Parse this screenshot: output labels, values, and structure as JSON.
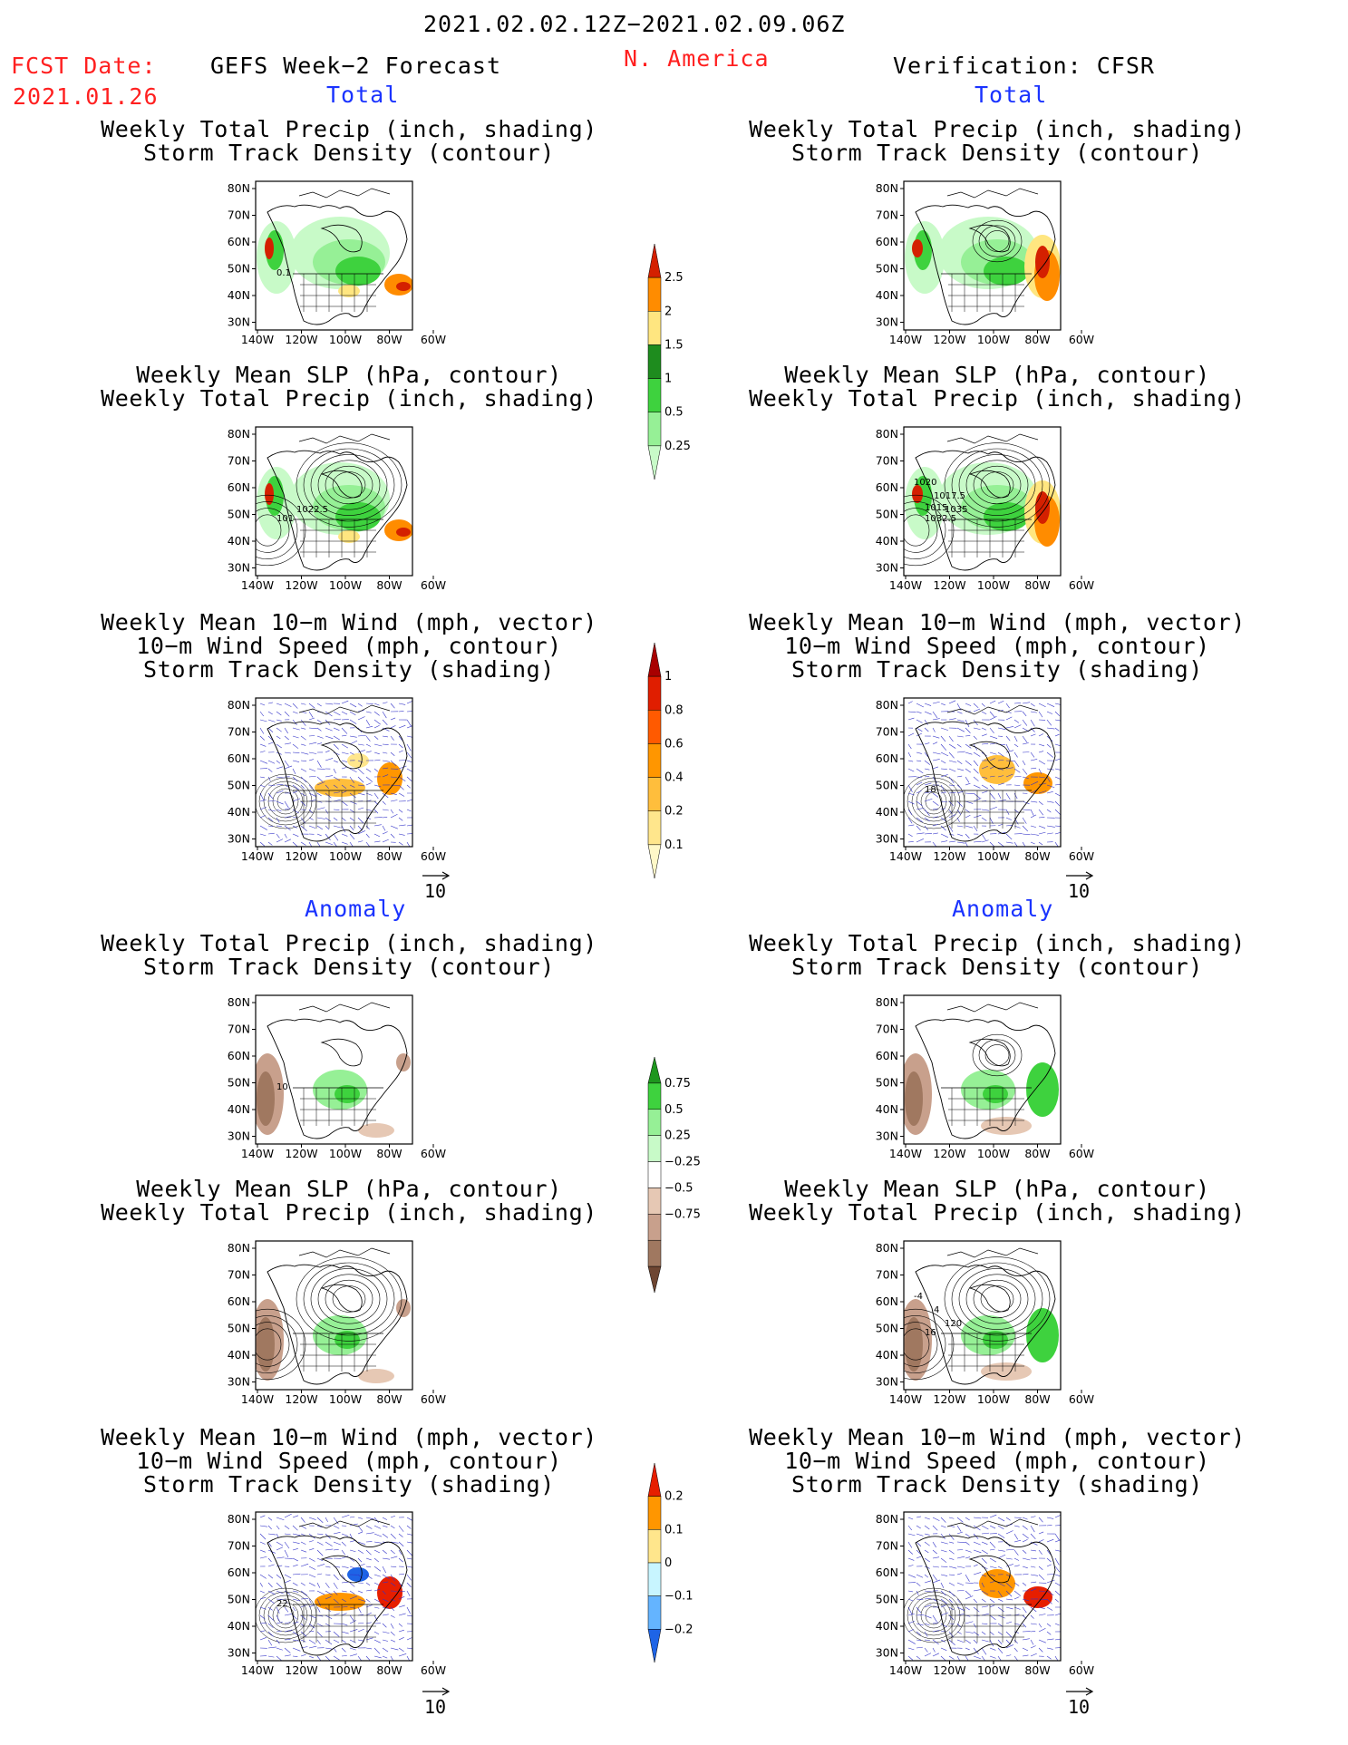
{
  "header": {
    "date_range": "2021.02.02.12Z−2021.02.09.06Z",
    "fcst_label": "FCST Date:",
    "fcst_date": "2021.01.26",
    "region": "N. America",
    "left_title": "GEFS Week−2 Forecast",
    "right_title": "Verification: CFSR"
  },
  "sections": {
    "total": "Total",
    "anomaly": "Anomaly"
  },
  "panel_titles": {
    "precip_track": [
      "Weekly Total Precip (inch, shading)",
      "Storm Track Density (contour)"
    ],
    "slp_precip": [
      "Weekly Mean SLP (hPa, contour)",
      "Weekly Total Precip (inch, shading)"
    ],
    "wind_track": [
      "Weekly Mean 10−m Wind (mph, vector)",
      "10−m Wind Speed (mph, contour)",
      "Storm Track Density (shading)"
    ]
  },
  "axes": {
    "lat_labels": [
      "80N",
      "70N",
      "60N",
      "50N",
      "40N",
      "30N"
    ],
    "lon_labels": [
      "140W",
      "120W",
      "100W",
      "80W",
      "60W"
    ]
  },
  "vector_ref": "10",
  "contour_labels": {
    "fcst_precip_track": [
      "0.1"
    ],
    "fcst_slp": [
      "101",
      "1022.5"
    ],
    "verif_slp": [
      "1032.5",
      "1035",
      "1020",
      "1017.5",
      "1015"
    ],
    "verif_wind": [
      "18"
    ],
    "fcst_anom_precip": [
      "10"
    ],
    "verif_anom_slp": [
      "16",
      "120",
      "-4",
      "4"
    ],
    "fcst_anom_wind": [
      "22"
    ]
  },
  "colorbars": {
    "precip_total": {
      "labels": [
        "2.5",
        "2",
        "1.5",
        "1",
        "0.5",
        "0.25"
      ],
      "colors": [
        "#d42000",
        "#ff8c00",
        "#ffe680",
        "#1e8c1e",
        "#3ed23e",
        "#96f096",
        "#c8fac8"
      ]
    },
    "track_total": {
      "labels": [
        "1",
        "0.8",
        "0.6",
        "0.4",
        "0.2",
        "0.1"
      ],
      "colors": [
        "#a80000",
        "#e01e00",
        "#ff5a00",
        "#ff9600",
        "#ffbe3c",
        "#ffe68c",
        "#fff8c8"
      ]
    },
    "precip_anom": {
      "labels": [
        "0.75",
        "0.5",
        "0.25",
        "−0.25",
        "−0.5",
        "−0.75"
      ],
      "colors": [
        "#1e961e",
        "#3ed23e",
        "#96f096",
        "#c8fac8",
        "#ffffff",
        "#e6c8b4",
        "#c8a08c",
        "#a07860",
        "#6e4632"
      ]
    },
    "track_anom": {
      "labels": [
        "0.2",
        "0.1",
        "0",
        "−0.1",
        "−0.2"
      ],
      "colors": [
        "#e61e00",
        "#ff9600",
        "#ffe68c",
        "#c8f5ff",
        "#64b4ff",
        "#1e64e6"
      ]
    }
  },
  "colors": {
    "header_red": "#ff2020",
    "section_blue": "#1a33ff",
    "wind_vector": "#3232c8"
  }
}
